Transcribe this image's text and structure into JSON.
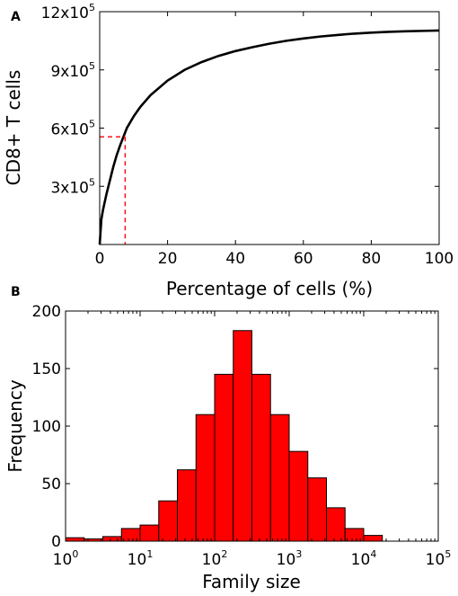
{
  "chart_data": [
    {
      "panel": "A",
      "type": "line",
      "xlabel": "Percentage of cells (%)",
      "ylabel": "CD8+ T cells",
      "xlim": [
        0,
        100
      ],
      "ylim": [
        0,
        1200000
      ],
      "xticks": [
        "0",
        "20",
        "40",
        "60",
        "80",
        "100"
      ],
      "yticks": [
        {
          "value": 300000,
          "base": "3x10",
          "exp": "5"
        },
        {
          "value": 600000,
          "base": "6x10",
          "exp": "5"
        },
        {
          "value": 900000,
          "base": "9x10",
          "exp": "5"
        },
        {
          "value": 1200000,
          "base": "12x10",
          "exp": "5"
        }
      ],
      "series": [
        {
          "color": "#000000",
          "x": [
            0,
            0.5,
            1,
            2,
            3,
            4,
            5,
            6,
            7,
            8,
            10,
            12,
            15,
            20,
            25,
            30,
            35,
            40,
            45,
            50,
            55,
            60,
            65,
            70,
            75,
            80,
            85,
            90,
            95,
            100
          ],
          "y": [
            0,
            130000,
            180000,
            260000,
            330000,
            400000,
            460000,
            510000,
            555000,
            600000,
            660000,
            710000,
            770000,
            845000,
            900000,
            940000,
            972000,
            997000,
            1017000,
            1035000,
            1050000,
            1062000,
            1072000,
            1080000,
            1087000,
            1092000,
            1096000,
            1099000,
            1101000,
            1103000
          ]
        }
      ],
      "annotations": [
        {
          "type": "dashed-marker",
          "color": "#ff0000",
          "x": 7.5,
          "y": 555000
        }
      ]
    },
    {
      "panel": "B",
      "type": "bar",
      "xlabel": "Family size",
      "ylabel": "Frequency",
      "xscale": "log",
      "xlim_exp": [
        0,
        5
      ],
      "ylim": [
        0,
        200
      ],
      "xticks": [
        {
          "base": "10",
          "exp": "0"
        },
        {
          "base": "10",
          "exp": "1"
        },
        {
          "base": "10",
          "exp": "2"
        },
        {
          "base": "10",
          "exp": "3"
        },
        {
          "base": "10",
          "exp": "4"
        },
        {
          "base": "10",
          "exp": "5"
        }
      ],
      "yticks": [
        "0",
        "50",
        "100",
        "150",
        "200"
      ],
      "bar_color": "#ff0000",
      "bin_edges_log10": [
        0.0,
        0.25,
        0.5,
        0.75,
        1.0,
        1.25,
        1.5,
        1.75,
        2.0,
        2.25,
        2.5,
        2.75,
        3.0,
        3.25,
        3.5,
        3.75,
        4.0,
        4.25,
        4.5
      ],
      "values": [
        3,
        2,
        4,
        11,
        14,
        35,
        62,
        110,
        145,
        183,
        145,
        110,
        78,
        55,
        29,
        11,
        5,
        0
      ]
    }
  ]
}
